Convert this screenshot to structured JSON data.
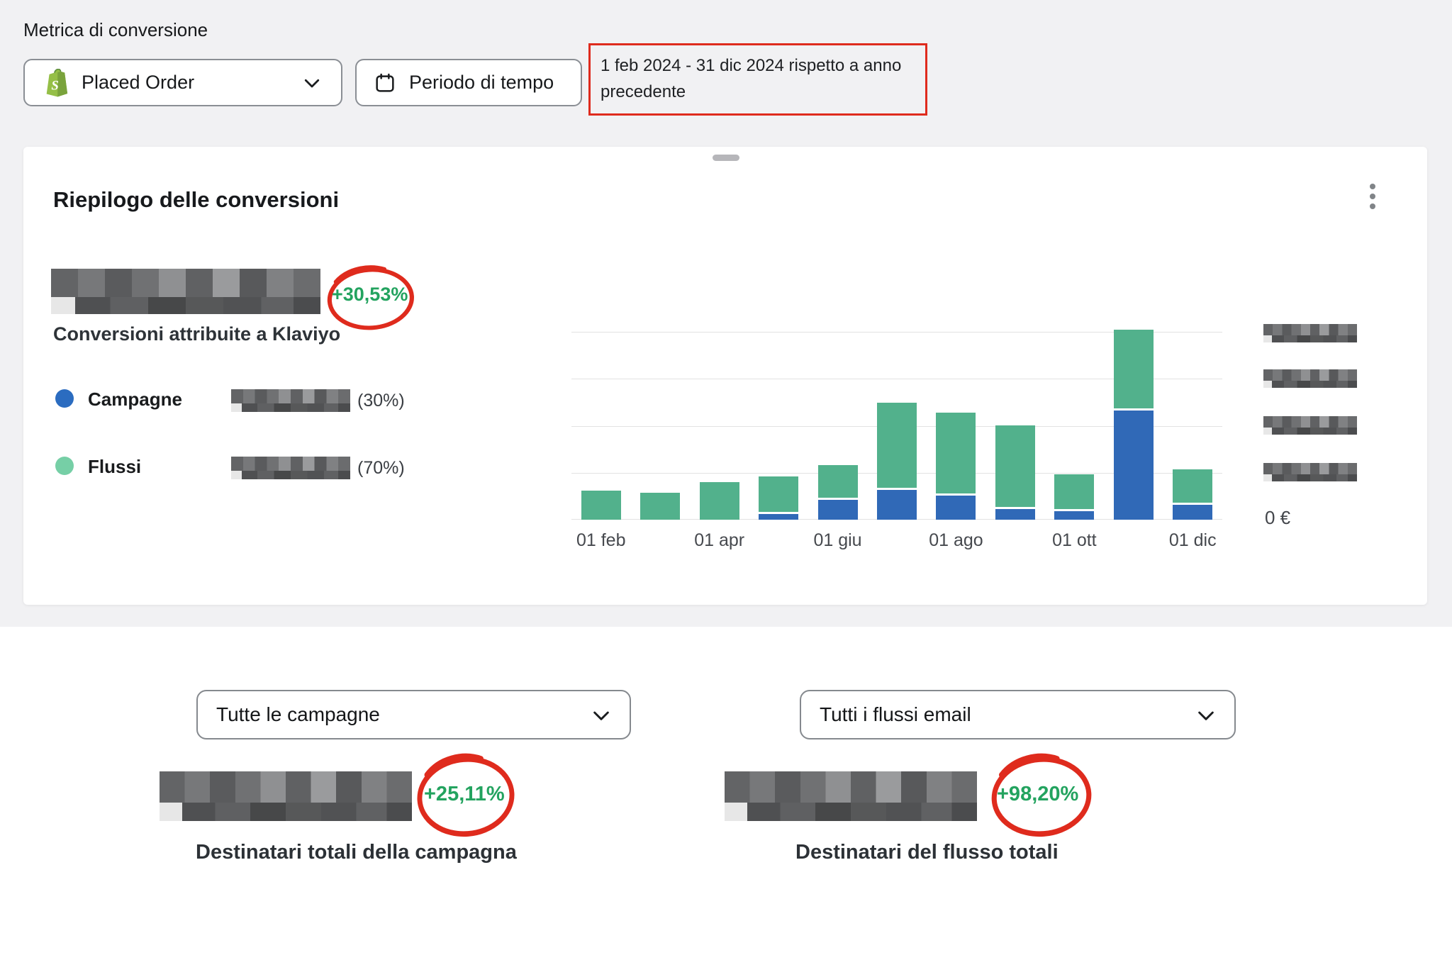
{
  "colors": {
    "page_bg_top": "#f1f1f3",
    "page_bg_bottom": "#ffffff",
    "bar_blue": "#3069b7",
    "bar_green": "#52b18c",
    "legend_blue_dot": "#2b6cc0",
    "legend_green_dot": "#76cfa6",
    "delta_green": "#23a35f",
    "annotation_red": "#df2b1d",
    "shopify_green": "#95bf47"
  },
  "toolbar": {
    "metric_label": "Metrica di conversione",
    "metric_dropdown": {
      "value": "Placed Order",
      "icon": "shopify-bag"
    },
    "period_button": {
      "label": "Periodo di tempo",
      "icon": "calendar"
    },
    "date_range_annotation": {
      "lines": [
        "1 feb 2024 - 31 dic 2024 rispetto a anno",
        "precedente"
      ],
      "boxed_in_red": true
    }
  },
  "card": {
    "title": "Riepilogo delle conversioni",
    "summary": {
      "value_redacted": true,
      "delta": "+30,53%",
      "delta_circled_red": true,
      "label": "Conversioni attribuite a Klaviyo"
    },
    "legend": [
      {
        "name": "Campagne",
        "dot_color": "#2b6cc0",
        "value_redacted": true,
        "share": "(30%)"
      },
      {
        "name": "Flussi",
        "dot_color": "#76cfa6",
        "value_redacted": true,
        "share": "(70%)"
      }
    ],
    "y_axis_zero": "0 €"
  },
  "chart_data": {
    "type": "bar",
    "stacked": true,
    "categories": [
      "01 feb",
      "01 mar",
      "01 apr",
      "01 mag",
      "01 giu",
      "01 lug",
      "01 ago",
      "01 set",
      "01 ott",
      "01 nov",
      "01 dic"
    ],
    "x_tick_labels": [
      "01 feb",
      "01 apr",
      "01 giu",
      "01 ago",
      "01 ott",
      "01 dic"
    ],
    "series": [
      {
        "name": "Campagne",
        "color": "#3069b7",
        "values": [
          0,
          0,
          0,
          3,
          10.5,
          16,
          13,
          5.5,
          4.5,
          58,
          8
        ]
      },
      {
        "name": "Flussi",
        "color": "#52b18c",
        "values": [
          15.5,
          14.5,
          20,
          19,
          17.5,
          45,
          43,
          43.5,
          18.5,
          42,
          17.5
        ]
      }
    ],
    "units": "percent_of_max_bar_height (actual euro values redacted in screenshot)",
    "y_axis": {
      "side": "right",
      "redacted_tick_labels": 4,
      "zero_label": "0 €"
    },
    "grid": true,
    "legend_position": "left"
  },
  "bottom": {
    "campaigns": {
      "dropdown": "Tutte le campagne",
      "value_redacted": true,
      "delta": "+25,11%",
      "delta_circled_red": true,
      "label": "Destinatari totali della campagna"
    },
    "flows": {
      "dropdown": "Tutti i flussi email",
      "value_redacted": true,
      "delta": "+98,20%",
      "delta_circled_red": true,
      "label": "Destinatari del flusso totali"
    }
  }
}
